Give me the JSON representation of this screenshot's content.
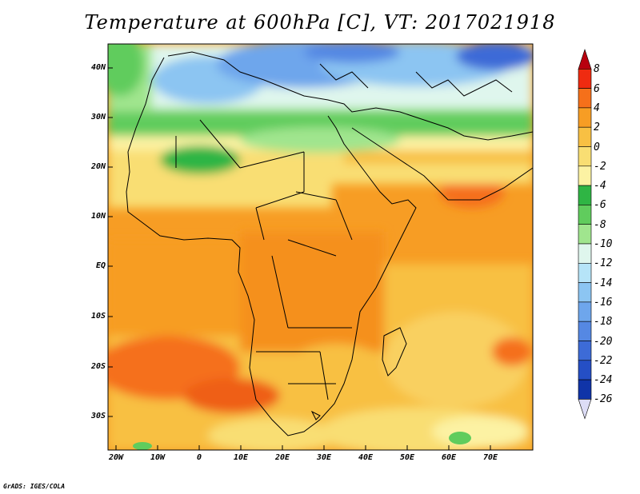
{
  "title": "Temperature at 600hPa [C], VT: 2017021918",
  "footer": "GrADS: IGES/COLA",
  "lat_labels": [
    "40N",
    "30N",
    "20N",
    "10N",
    "EQ",
    "10S",
    "20S",
    "30S"
  ],
  "lon_labels": [
    "20W",
    "10W",
    "0",
    "10E",
    "20E",
    "30E",
    "40E",
    "50E",
    "60E",
    "70E"
  ],
  "colorbar": {
    "labels": [
      "8",
      "6",
      "4",
      "2",
      "0",
      "-2",
      "-4",
      "-6",
      "-8",
      "-10",
      "-12",
      "-14",
      "-16",
      "-18",
      "-20",
      "-22",
      "-24",
      "-26"
    ],
    "colors": [
      "#b8000f",
      "#ef2b10",
      "#f5701a",
      "#f79d24",
      "#f8c043",
      "#f9de73",
      "#fcf2a3",
      "#2fb544",
      "#60cc5d",
      "#a0e58e",
      "#dff6ed",
      "#b6e4f8",
      "#8cc5f2",
      "#6ea6ec",
      "#5588e3",
      "#3d6bd7",
      "#254fc5",
      "#1034a8",
      "#0c1f7d"
    ]
  }
}
